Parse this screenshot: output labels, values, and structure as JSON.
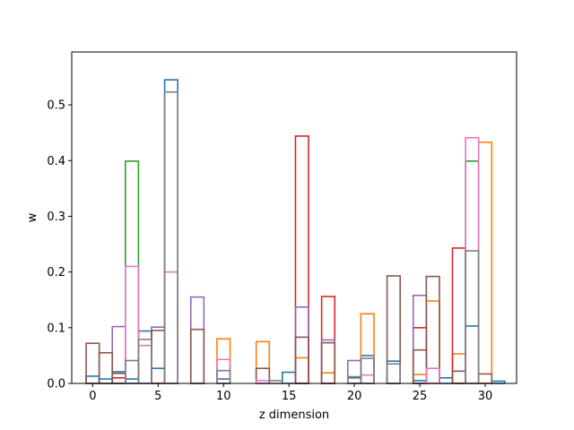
{
  "chart_data": {
    "type": "bar",
    "style": "step-outline",
    "xlabel": "z dimension",
    "ylabel": "w",
    "xlim": [
      -1.6,
      32.4
    ],
    "ylim": [
      0,
      0.595
    ],
    "xticks": [
      0,
      5,
      10,
      15,
      20,
      25,
      30
    ],
    "yticks": [
      0.0,
      0.1,
      0.2,
      0.3,
      0.4,
      0.5
    ],
    "ytick_labels": [
      "0.0",
      "0.1",
      "0.2",
      "0.3",
      "0.4",
      "0.5"
    ],
    "grid": false,
    "series": [
      {
        "color": "#1f77b4",
        "values": {
          "0": 0.013,
          "1": 0.008,
          "2": 0.021,
          "3": 0.008,
          "4": 0.094,
          "5": 0.027,
          "6": 0.545,
          "10": 0.008,
          "15": 0.02,
          "20": 0.01,
          "21": 0.05,
          "23": 0.04,
          "25": 0.005,
          "27": 0.01,
          "29": 0.103,
          "31": 0.004
        }
      },
      {
        "color": "#ff7f0e",
        "values": {
          "10": 0.08,
          "13": 0.075,
          "16": 0.046,
          "18": 0.019,
          "21": 0.125,
          "25": 0.016,
          "26": 0.148,
          "28": 0.053,
          "30": 0.433
        }
      },
      {
        "color": "#2ca02c",
        "values": {
          "3": 0.399,
          "29": 0.399
        }
      },
      {
        "color": "#d62728",
        "values": {
          "2": 0.01,
          "16": 0.444,
          "18": 0.156,
          "25": 0.1,
          "28": 0.243
        }
      },
      {
        "color": "#9467bd",
        "values": {
          "2": 0.102,
          "5": 0.101,
          "8": 0.155,
          "16": 0.137,
          "18": 0.078,
          "20": 0.041,
          "25": 0.158
        }
      },
      {
        "color": "#8c564b",
        "values": {
          "0": 0.072,
          "1": 0.055,
          "2": 0.018,
          "5": 0.095,
          "8": 0.097,
          "13": 0.027,
          "16": 0.083,
          "18": 0.073,
          "23": 0.193,
          "25": 0.06,
          "26": 0.192,
          "28": 0.022,
          "30": 0.017
        }
      },
      {
        "color": "#e377c2",
        "values": {
          "3": 0.21,
          "4": 0.068,
          "6": 0.2,
          "10": 0.043,
          "13": 0.005,
          "21": 0.015,
          "26": 0.027,
          "29": 0.441
        }
      },
      {
        "color": "#7f7f7f",
        "values": {
          "3": 0.041,
          "4": 0.079,
          "6": 0.523,
          "10": 0.023,
          "14": 0.005,
          "20": 0.012,
          "21": 0.045,
          "23": 0.035,
          "29": 0.238
        }
      }
    ]
  }
}
